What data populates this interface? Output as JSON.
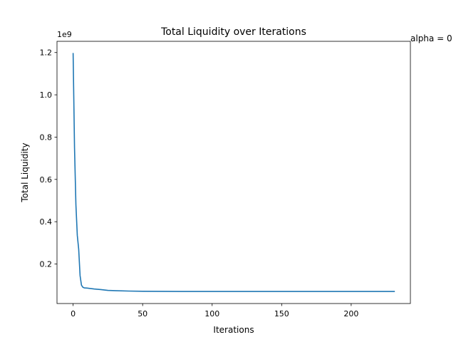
{
  "chart_data": {
    "type": "line",
    "title": "Total Liquidity over Iterations",
    "xlabel": "Iterations",
    "ylabel": "Total Liquidity",
    "y_scale_label": "1e9",
    "annotation": "alpha = 0",
    "xlim": [
      -11.6,
      242.6
    ],
    "ylim": [
      0.013,
      1.253
    ],
    "y_scale": 1000000000,
    "xticks": [
      0,
      50,
      100,
      150,
      200
    ],
    "yticks": [
      0.2,
      0.4,
      0.6,
      0.8,
      1.0,
      1.2
    ],
    "ytick_labels": [
      "0.2",
      "0.4",
      "0.6",
      "0.8",
      "1.0",
      "1.2"
    ],
    "grid": false,
    "line_color": "#1f77b4",
    "series": [
      {
        "x": [
          0,
          1,
          2,
          3,
          4,
          5,
          6,
          7,
          8,
          10,
          15,
          20,
          25,
          30,
          40,
          50,
          80,
          100,
          150,
          200,
          231
        ],
        "values": [
          1.195,
          0.75,
          0.48,
          0.335,
          0.27,
          0.145,
          0.1,
          0.09,
          0.087,
          0.086,
          0.082,
          0.079,
          0.075,
          0.074,
          0.072,
          0.071,
          0.07,
          0.07,
          0.07,
          0.07,
          0.07
        ]
      }
    ]
  }
}
